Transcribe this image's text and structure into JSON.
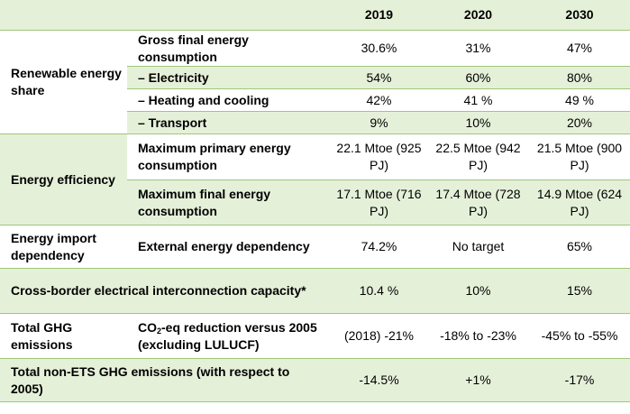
{
  "columns": [
    "2019",
    "2020",
    "2030"
  ],
  "sections": {
    "renewable": {
      "label": "Renewable energy share",
      "rows": [
        {
          "indicator": "Gross final energy consumption",
          "values": [
            "30.6%",
            "31%",
            "47%"
          ]
        },
        {
          "indicator": "– Electricity",
          "values": [
            "54%",
            "60%",
            "80%"
          ]
        },
        {
          "indicator": "– Heating and cooling",
          "values": [
            "42%",
            "41 %",
            "49 %"
          ]
        },
        {
          "indicator": "– Transport",
          "values": [
            "9%",
            "10%",
            "20%"
          ]
        }
      ]
    },
    "efficiency": {
      "label": "Energy efficiency",
      "rows": [
        {
          "indicator": "Maximum primary energy consumption",
          "values": [
            "22.1 Mtoe (925 PJ)",
            "22.5 Mtoe (942 PJ)",
            "21.5 Mtoe (900 PJ)"
          ]
        },
        {
          "indicator": "Maximum final energy consumption",
          "values": [
            "17.1 Mtoe (716 PJ)",
            "17.4 Mtoe (728 PJ)",
            "14.9 Mtoe (624 PJ)"
          ]
        }
      ]
    },
    "import": {
      "label": "Energy import dependency",
      "rows": [
        {
          "indicator": "External energy dependency",
          "values": [
            "74.2%",
            "No target",
            "65%"
          ]
        }
      ]
    },
    "crossborder": {
      "label": "Cross-border electrical interconnection capacity*",
      "values": [
        "10.4 %",
        "10%",
        "15%"
      ]
    },
    "ghg": {
      "label": "Total GHG emissions",
      "indicator_pre": "CO",
      "indicator_sub": "2",
      "indicator_post": "-eq reduction versus 2005 (excluding LULUCF)",
      "values": [
        "(2018) -21%",
        "-18% to -23%",
        "-45% to -55%"
      ]
    },
    "nonets": {
      "label": "Total non-ETS GHG emissions (with respect to 2005)",
      "values": [
        "-14.5%",
        "+1%",
        "-17%"
      ]
    }
  }
}
